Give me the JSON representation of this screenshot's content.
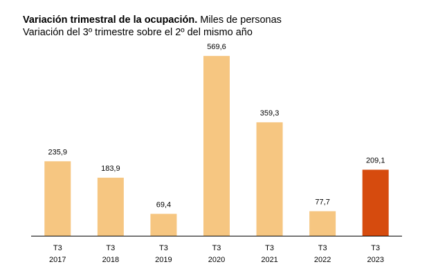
{
  "chart_data": {
    "type": "bar",
    "title": "Variación trimestral de la ocupación.",
    "units": "Miles de personas",
    "subtitle": "Variación del 3º trimestre sobre el 2º del mismo año",
    "categories": [
      [
        "T3",
        "2017"
      ],
      [
        "T3",
        "2018"
      ],
      [
        "T3",
        "2019"
      ],
      [
        "T3",
        "2020"
      ],
      [
        "T3",
        "2021"
      ],
      [
        "T3",
        "2022"
      ],
      [
        "T3",
        "2023"
      ]
    ],
    "values": [
      235.9,
      183.9,
      69.4,
      569.6,
      359.3,
      77.7,
      209.1
    ],
    "value_labels": [
      "235,9",
      "183,9",
      "69,4",
      "569,6",
      "359,3",
      "77,7",
      "209,1"
    ],
    "colors": [
      "#f6c681",
      "#f6c681",
      "#f6c681",
      "#f6c681",
      "#f6c681",
      "#f6c681",
      "#d64b0e"
    ],
    "ylim": [
      0,
      600
    ]
  }
}
